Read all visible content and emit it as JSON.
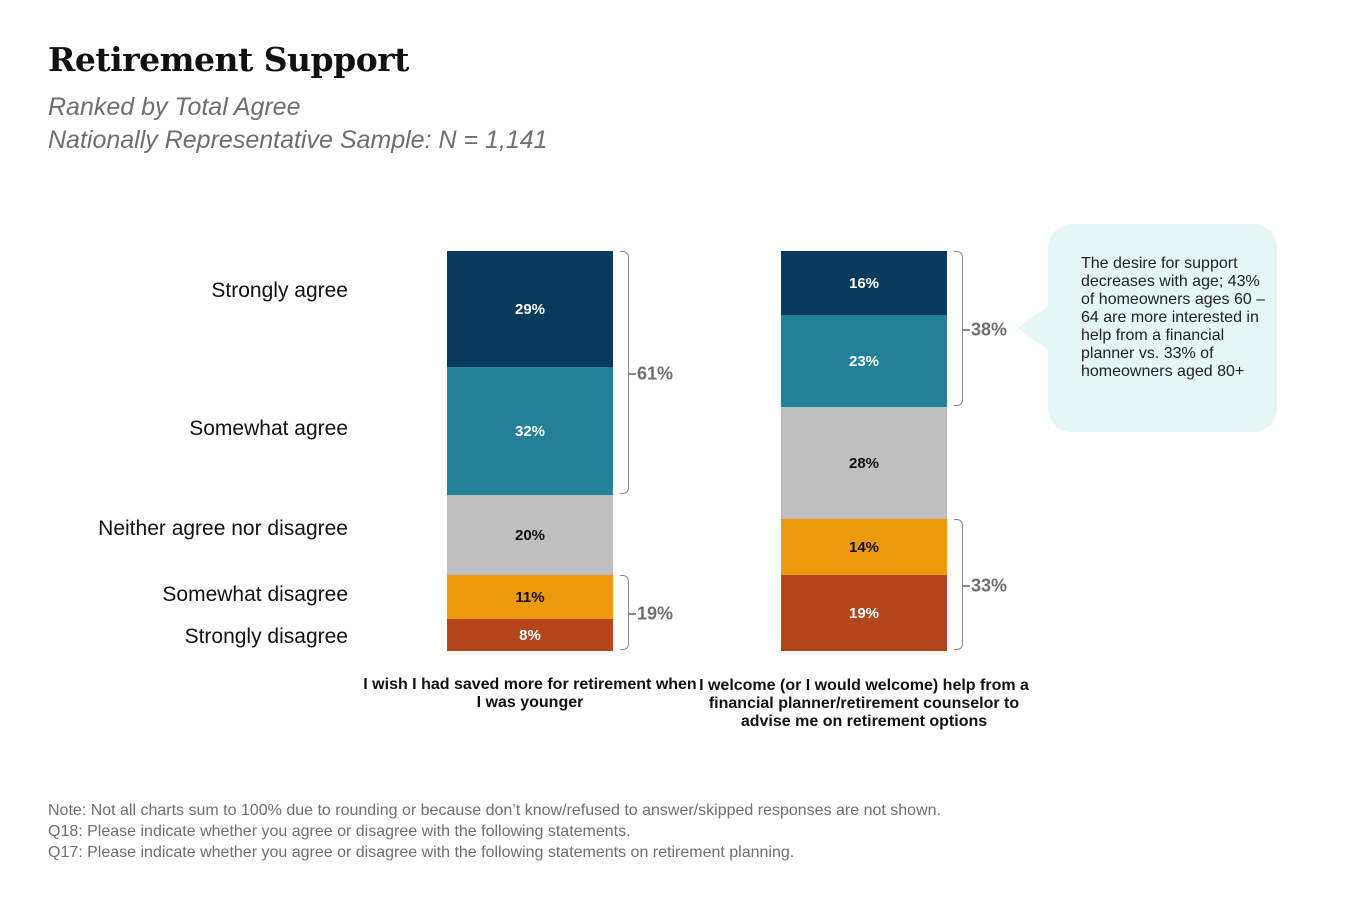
{
  "title": "Retirement Support",
  "subtitle1": "Ranked by Total Agree",
  "subtitle2": "Nationally Representative Sample: N = 1,141",
  "chart_data": {
    "type": "stacked-bar",
    "categories": [
      "I wish I had saved more for retirement when I was younger",
      "I welcome (or I would welcome) help from a financial planner/retirement counselor to advise me on retirement options"
    ],
    "series": [
      {
        "name": "Strongly agree",
        "color": "#073a5c",
        "text_color": "#ffffff",
        "values": [
          29,
          16
        ]
      },
      {
        "name": "Somewhat agree",
        "color": "#228196",
        "text_color": "#ffffff",
        "values": [
          32,
          23
        ]
      },
      {
        "name": "Neither agree nor disagree",
        "color": "#bfbfbf",
        "text_color": "#111111",
        "values": [
          20,
          28
        ]
      },
      {
        "name": "Somewhat disagree",
        "color": "#ec9a0a",
        "text_color": "#111111",
        "values": [
          11,
          14
        ]
      },
      {
        "name": "Strongly disagree",
        "color": "#b5451b",
        "text_color": "#ffffff",
        "values": [
          8,
          19
        ]
      }
    ],
    "totals": [
      {
        "agree": "61%",
        "disagree": "19%"
      },
      {
        "agree": "38%",
        "disagree": "33%"
      }
    ]
  },
  "callout": "The desire for support decreases with age; 43% of homeowners ages 60 – 64 are more interested in help from a financial  planner vs. 33% of homeowners aged 80+",
  "notes": [
    "Note: Not all charts sum to 100% due to rounding or because don’t know/refused to answer/skipped responses are not shown.",
    "Q18: Please indicate whether you agree or disagree with the following statements.",
    "Q17: Please indicate whether you agree or disagree with the following statements on retirement planning."
  ]
}
